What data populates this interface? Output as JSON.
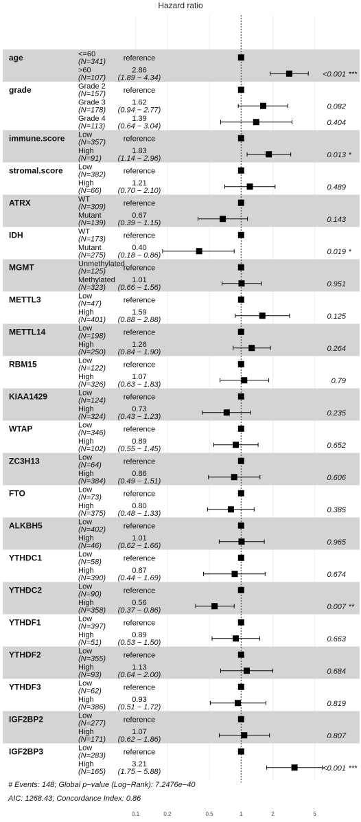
{
  "chart_data": {
    "type": "forest",
    "title": "Hazard ratio",
    "x_scale": "log",
    "x_ticks": [
      0.1,
      0.2,
      0.5,
      1,
      2,
      5
    ],
    "x_tick_labels": [
      "0.1",
      "0.2",
      "0.5",
      "1",
      "2",
      "5"
    ],
    "xlim": [
      0.1,
      7
    ],
    "reference_line": 1,
    "reference_label": "reference",
    "variables": [
      {
        "name": "age",
        "levels": [
          {
            "level": "<=60",
            "n": "(N=341)",
            "reference": true
          },
          {
            "level": ">60",
            "n": "(N=107)",
            "hr": 2.86,
            "hr_text": "2.86",
            "ci": [
              1.89,
              4.34
            ],
            "ci_text": "(1.89 − 4.34)",
            "p": "<0.001",
            "sig": "***"
          }
        ]
      },
      {
        "name": "grade",
        "levels": [
          {
            "level": "Grade 2",
            "n": "(N=157)",
            "reference": true
          },
          {
            "level": "Grade 3",
            "n": "(N=178)",
            "hr": 1.62,
            "hr_text": "1.62",
            "ci": [
              0.94,
              2.77
            ],
            "ci_text": "(0.94 − 2.77)",
            "p": "0.082",
            "sig": ""
          },
          {
            "level": "Grade 4",
            "n": "(N=113)",
            "hr": 1.39,
            "hr_text": "1.39",
            "ci": [
              0.64,
              3.04
            ],
            "ci_text": "(0.64 − 3.04)",
            "p": "0.404",
            "sig": ""
          }
        ]
      },
      {
        "name": "immune.score",
        "levels": [
          {
            "level": "Low",
            "n": "(N=357)",
            "reference": true
          },
          {
            "level": "High",
            "n": "(N=91)",
            "hr": 1.83,
            "hr_text": "1.83",
            "ci": [
              1.14,
              2.96
            ],
            "ci_text": "(1.14 − 2.96)",
            "p": "0.013",
            "sig": "*"
          }
        ]
      },
      {
        "name": "stromal.score",
        "levels": [
          {
            "level": "Low",
            "n": "(N=382)",
            "reference": true
          },
          {
            "level": "High",
            "n": "(N=66)",
            "hr": 1.21,
            "hr_text": "1.21",
            "ci": [
              0.7,
              2.1
            ],
            "ci_text": "(0.70 − 2.10)",
            "p": "0.489",
            "sig": ""
          }
        ]
      },
      {
        "name": "ATRX",
        "levels": [
          {
            "level": "WT",
            "n": "(N=309)",
            "reference": true
          },
          {
            "level": "Mutant",
            "n": "(N=139)",
            "hr": 0.67,
            "hr_text": "0.67",
            "ci": [
              0.39,
              1.15
            ],
            "ci_text": "(0.39 − 1.15)",
            "p": "0.143",
            "sig": ""
          }
        ]
      },
      {
        "name": "IDH",
        "levels": [
          {
            "level": "WT",
            "n": "(N=173)",
            "reference": true
          },
          {
            "level": "Mutant",
            "n": "(N=275)",
            "hr": 0.4,
            "hr_text": "0.40",
            "ci": [
              0.18,
              0.86
            ],
            "ci_text": "(0.18 − 0.86)",
            "p": "0.019",
            "sig": "*"
          }
        ]
      },
      {
        "name": "MGMT",
        "levels": [
          {
            "level": "Unmethylated",
            "n": "(N=125)",
            "reference": true
          },
          {
            "level": "Methylated",
            "n": "(N=323)",
            "hr": 1.01,
            "hr_text": "1.01",
            "ci": [
              0.66,
              1.56
            ],
            "ci_text": "(0.66 − 1.56)",
            "p": "0.951",
            "sig": ""
          }
        ]
      },
      {
        "name": "METTL3",
        "levels": [
          {
            "level": "Low",
            "n": "(N=47)",
            "reference": true
          },
          {
            "level": "High",
            "n": "(N=401)",
            "hr": 1.59,
            "hr_text": "1.59",
            "ci": [
              0.88,
              2.88
            ],
            "ci_text": "(0.88 − 2.88)",
            "p": "0.125",
            "sig": ""
          }
        ]
      },
      {
        "name": "METTL14",
        "levels": [
          {
            "level": "Low",
            "n": "(N=198)",
            "reference": true
          },
          {
            "level": "High",
            "n": "(N=250)",
            "hr": 1.26,
            "hr_text": "1.26",
            "ci": [
              0.84,
              1.9
            ],
            "ci_text": "(0.84 − 1.90)",
            "p": "0.264",
            "sig": ""
          }
        ]
      },
      {
        "name": "RBM15",
        "levels": [
          {
            "level": "Low",
            "n": "(N=122)",
            "reference": true
          },
          {
            "level": "High",
            "n": "(N=326)",
            "hr": 1.07,
            "hr_text": "1.07",
            "ci": [
              0.63,
              1.83
            ],
            "ci_text": "(0.63 − 1.83)",
            "p": "0.79",
            "sig": ""
          }
        ]
      },
      {
        "name": "KIAA1429",
        "levels": [
          {
            "level": "Low",
            "n": "(N=124)",
            "reference": true
          },
          {
            "level": "High",
            "n": "(N=324)",
            "hr": 0.73,
            "hr_text": "0.73",
            "ci": [
              0.43,
              1.23
            ],
            "ci_text": "(0.43 − 1.23)",
            "p": "0.235",
            "sig": ""
          }
        ]
      },
      {
        "name": "WTAP",
        "levels": [
          {
            "level": "Low",
            "n": "(N=346)",
            "reference": true
          },
          {
            "level": "High",
            "n": "(N=102)",
            "hr": 0.89,
            "hr_text": "0.89",
            "ci": [
              0.55,
              1.45
            ],
            "ci_text": "(0.55 − 1.45)",
            "p": "0.652",
            "sig": ""
          }
        ]
      },
      {
        "name": "ZC3H13",
        "levels": [
          {
            "level": "Low",
            "n": "(N=64)",
            "reference": true
          },
          {
            "level": "High",
            "n": "(N=384)",
            "hr": 0.86,
            "hr_text": "0.86",
            "ci": [
              0.49,
              1.51
            ],
            "ci_text": "(0.49 − 1.51)",
            "p": "0.606",
            "sig": ""
          }
        ]
      },
      {
        "name": "FTO",
        "levels": [
          {
            "level": "Low",
            "n": "(N=73)",
            "reference": true
          },
          {
            "level": "High",
            "n": "(N=375)",
            "hr": 0.8,
            "hr_text": "0.80",
            "ci": [
              0.48,
              1.33
            ],
            "ci_text": "(0.48 − 1.33)",
            "p": "0.385",
            "sig": ""
          }
        ]
      },
      {
        "name": "ALKBH5",
        "levels": [
          {
            "level": "Low",
            "n": "(N=402)",
            "reference": true
          },
          {
            "level": "High",
            "n": "(N=46)",
            "hr": 1.01,
            "hr_text": "1.01",
            "ci": [
              0.62,
              1.66
            ],
            "ci_text": "(0.62 − 1.66)",
            "p": "0.965",
            "sig": ""
          }
        ]
      },
      {
        "name": "YTHDC1",
        "levels": [
          {
            "level": "Low",
            "n": "(N=58)",
            "reference": true
          },
          {
            "level": "High",
            "n": "(N=390)",
            "hr": 0.87,
            "hr_text": "0.87",
            "ci": [
              0.44,
              1.69
            ],
            "ci_text": "(0.44 − 1.69)",
            "p": "0.674",
            "sig": ""
          }
        ]
      },
      {
        "name": "YTHDC2",
        "levels": [
          {
            "level": "Low",
            "n": "(N=90)",
            "reference": true
          },
          {
            "level": "High",
            "n": "(N=358)",
            "hr": 0.56,
            "hr_text": "0.56",
            "ci": [
              0.37,
              0.86
            ],
            "ci_text": "(0.37 − 0.86)",
            "p": "0.007",
            "sig": "**"
          }
        ]
      },
      {
        "name": "YTHDF1",
        "levels": [
          {
            "level": "Low",
            "n": "(N=397)",
            "reference": true
          },
          {
            "level": "High",
            "n": "(N=51)",
            "hr": 0.89,
            "hr_text": "0.89",
            "ci": [
              0.53,
              1.5
            ],
            "ci_text": "(0.53 − 1.50)",
            "p": "0.663",
            "sig": ""
          }
        ]
      },
      {
        "name": "YTHDF2",
        "levels": [
          {
            "level": "Low",
            "n": "(N=355)",
            "reference": true
          },
          {
            "level": "High",
            "n": "(N=93)",
            "hr": 1.13,
            "hr_text": "1.13",
            "ci": [
              0.64,
              2.0
            ],
            "ci_text": "(0.64 − 2.00)",
            "p": "0.684",
            "sig": ""
          }
        ]
      },
      {
        "name": "YTHDF3",
        "levels": [
          {
            "level": "Low",
            "n": "(N=62)",
            "reference": true
          },
          {
            "level": "High",
            "n": "(N=386)",
            "hr": 0.93,
            "hr_text": "0.93",
            "ci": [
              0.51,
              1.72
            ],
            "ci_text": "(0.51 − 1.72)",
            "p": "0.819",
            "sig": ""
          }
        ]
      },
      {
        "name": "IGF2BP2",
        "levels": [
          {
            "level": "Low",
            "n": "(N=277)",
            "reference": true
          },
          {
            "level": "High",
            "n": "(N=171)",
            "hr": 1.07,
            "hr_text": "1.07",
            "ci": [
              0.62,
              1.86
            ],
            "ci_text": "(0.62 − 1.86)",
            "p": "0.807",
            "sig": ""
          }
        ]
      },
      {
        "name": "IGF2BP3",
        "levels": [
          {
            "level": "Low",
            "n": "(N=283)",
            "reference": true
          },
          {
            "level": "High",
            "n": "(N=165)",
            "hr": 3.21,
            "hr_text": "3.21",
            "ci": [
              1.75,
              5.88
            ],
            "ci_text": "(1.75 − 5.88)",
            "p": "<0.001",
            "sig": "***"
          }
        ]
      }
    ],
    "footer": [
      "# Events: 148; Global p−value (Log−Rank): 7.2476e−40",
      "AIC: 1268.43; Concordance Index: 0.86"
    ],
    "colors": {
      "band": "#d4d4d4",
      "marker": "#000000",
      "gridline": "#e8e8e8",
      "reference_line": "#333333"
    }
  }
}
